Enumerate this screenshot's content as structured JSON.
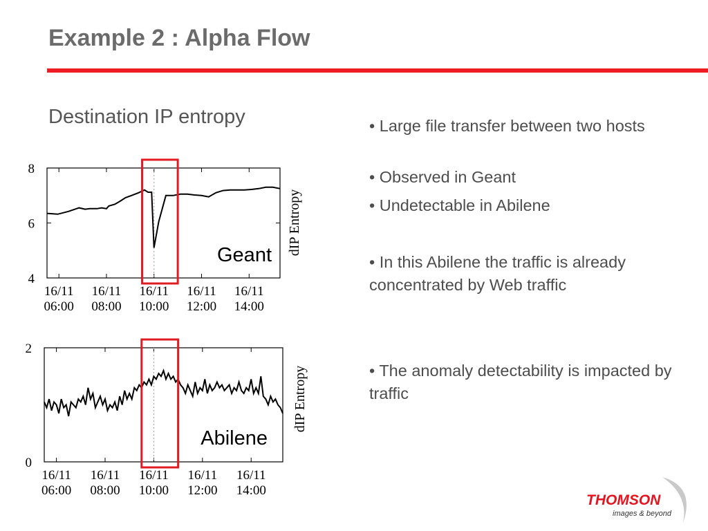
{
  "slide": {
    "title": "Example 2 : Alpha Flow",
    "subtitle": "Destination IP entropy",
    "accent_color": "#ee1c24"
  },
  "bullets": [
    "• Large file transfer between two hosts",
    "• Observed in Geant",
    "• Undetectable in Abilene",
    "• In this Abilene the traffic is already concentrated by Web traffic",
    "• The anomaly detectability is impacted by traffic"
  ],
  "logo": {
    "brand": "THOMSON",
    "tagline": "images & beyond",
    "brand_color": "#e4151f"
  },
  "chart_data": [
    {
      "type": "line",
      "name_label": "Geant",
      "ylabel": "dIP Entropy",
      "ylim": [
        4,
        8
      ],
      "yticks": [
        "8",
        "6",
        "4"
      ],
      "xlim": [
        5.5,
        15.3
      ],
      "xtick_values": [
        6,
        8,
        10,
        12,
        14
      ],
      "xticks": [
        [
          "16/11",
          "06:00"
        ],
        [
          "16/11",
          "08:00"
        ],
        [
          "16/11",
          "10:00"
        ],
        [
          "16/11",
          "12:00"
        ],
        [
          "16/11",
          "14:00"
        ]
      ],
      "highlight_x": [
        9.5,
        11.0
      ],
      "marker_x": 10.0,
      "line_color": "#000000",
      "highlight_color": "#e11b22",
      "series": [
        {
          "x": [
            5.5,
            5.95,
            6.4,
            6.85,
            7.1,
            7.3,
            7.6,
            7.8,
            8.0,
            8.1,
            8.35,
            8.55,
            8.8,
            9.05,
            9.35,
            9.6,
            9.75,
            9.9,
            10.0,
            10.2,
            10.5,
            10.8,
            11.1,
            11.4,
            11.7,
            12.0,
            12.3,
            12.6,
            12.9,
            13.2,
            13.5,
            13.8,
            14.1,
            14.4,
            14.7,
            15.0,
            15.3
          ],
          "y": [
            6.35,
            6.32,
            6.42,
            6.55,
            6.5,
            6.52,
            6.52,
            6.55,
            6.52,
            6.62,
            6.68,
            6.78,
            6.92,
            7.0,
            7.1,
            7.2,
            7.12,
            7.12,
            5.1,
            6.05,
            7.0,
            7.0,
            7.05,
            7.05,
            7.02,
            7.0,
            6.95,
            7.1,
            7.18,
            7.2,
            7.2,
            7.2,
            7.22,
            7.25,
            7.3,
            7.3,
            7.25
          ]
        }
      ]
    },
    {
      "type": "line",
      "name_label": "Abilene",
      "ylabel": "dIP Entropy",
      "ylim": [
        0,
        2
      ],
      "yticks": [
        "2",
        "0"
      ],
      "xlim": [
        5.5,
        15.3
      ],
      "xtick_values": [
        6,
        8,
        10,
        12,
        14
      ],
      "xticks": [
        [
          "16/11",
          "06:00"
        ],
        [
          "16/11",
          "08:00"
        ],
        [
          "16/11",
          "10:00"
        ],
        [
          "16/11",
          "12:00"
        ],
        [
          "16/11",
          "14:00"
        ]
      ],
      "highlight_x": [
        9.5,
        11.0
      ],
      "marker_x": 10.0,
      "line_color": "#000000",
      "highlight_color": "#e11b22",
      "series": [
        {
          "x": [
            5.5,
            5.6,
            5.7,
            5.8,
            5.9,
            6.0,
            6.1,
            6.2,
            6.3,
            6.4,
            6.5,
            6.6,
            6.7,
            6.8,
            6.9,
            7.0,
            7.1,
            7.2,
            7.3,
            7.4,
            7.5,
            7.6,
            7.7,
            7.8,
            7.9,
            8.0,
            8.1,
            8.2,
            8.3,
            8.4,
            8.5,
            8.6,
            8.7,
            8.8,
            8.9,
            9.0,
            9.1,
            9.2,
            9.3,
            9.4,
            9.5,
            9.6,
            9.7,
            9.8,
            9.9,
            10.0,
            10.1,
            10.2,
            10.3,
            10.4,
            10.5,
            10.6,
            10.7,
            10.8,
            10.9,
            11.0,
            11.1,
            11.2,
            11.3,
            11.4,
            11.5,
            11.6,
            11.7,
            11.8,
            11.9,
            12.0,
            12.1,
            12.2,
            12.3,
            12.4,
            12.5,
            12.6,
            12.7,
            12.8,
            12.9,
            13.0,
            13.1,
            13.2,
            13.3,
            13.4,
            13.5,
            13.6,
            13.7,
            13.8,
            13.9,
            14.0,
            14.1,
            14.2,
            14.3,
            14.4,
            14.5,
            14.6,
            14.7,
            14.8,
            14.9,
            15.0,
            15.1,
            15.2,
            15.3
          ],
          "y": [
            1.05,
            0.95,
            1.1,
            0.9,
            1.05,
            1.0,
            0.85,
            1.1,
            0.95,
            1.0,
            0.8,
            1.05,
            1.0,
            0.95,
            1.1,
            1.05,
            1.15,
            1.0,
            1.3,
            1.1,
            1.2,
            0.95,
            1.05,
            1.15,
            1.0,
            1.1,
            0.9,
            1.0,
            0.95,
            1.05,
            0.9,
            1.15,
            1.0,
            1.25,
            1.1,
            1.2,
            1.1,
            1.3,
            1.25,
            1.35,
            1.3,
            1.4,
            1.35,
            1.45,
            1.35,
            1.5,
            1.45,
            1.55,
            1.5,
            1.6,
            1.45,
            1.55,
            1.45,
            1.5,
            1.4,
            1.45,
            1.35,
            1.3,
            1.2,
            1.35,
            1.25,
            1.15,
            1.4,
            1.2,
            1.3,
            1.25,
            1.45,
            1.2,
            1.35,
            1.25,
            1.3,
            1.4,
            1.3,
            1.35,
            1.25,
            1.3,
            1.35,
            1.2,
            1.3,
            1.25,
            1.4,
            1.25,
            1.2,
            1.3,
            1.25,
            1.45,
            1.2,
            1.3,
            1.2,
            1.5,
            1.15,
            1.1,
            1.0,
            1.15,
            1.05,
            1.1,
            1.0,
            0.95,
            0.85
          ]
        }
      ]
    }
  ]
}
